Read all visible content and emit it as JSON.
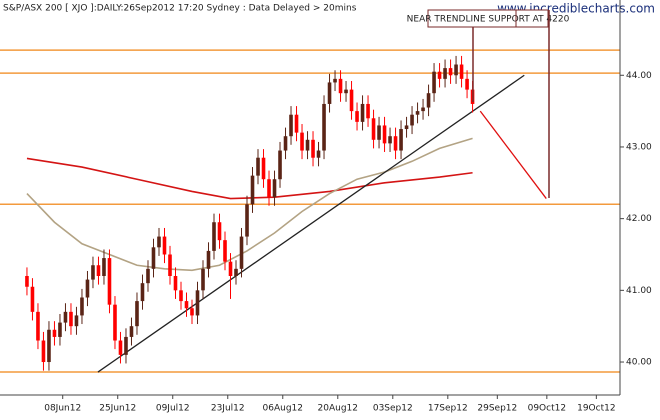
{
  "chart_data": {
    "type": "candlestick",
    "title": "S&P/ASX 200 [ XJO ]:DAILY:26Sep2012 17:20 Sydney : Data Delayed > 20mins",
    "watermark": "www.incrediblecharts.com",
    "annotation": "NEAR TRENDLINE SUPPORT AT 4220",
    "up_color": "#5a2416",
    "down_color": "#ff0000",
    "xlim": [
      -4.9,
      107.8
    ],
    "xticks": [
      {
        "value": 6.5,
        "label": "08Jun12"
      },
      {
        "value": 16.5,
        "label": "25Jun12"
      },
      {
        "value": 26.5,
        "label": "09Jul12"
      },
      {
        "value": 36.5,
        "label": "23Jul12"
      },
      {
        "value": 46.5,
        "label": "06Aug12"
      },
      {
        "value": 56.5,
        "label": "20Aug12"
      },
      {
        "value": 66.5,
        "label": "03Sep12"
      },
      {
        "value": 76.5,
        "label": "17Sep12"
      },
      {
        "value": 85.5,
        "label": "29Sep12"
      },
      {
        "value": 94.5,
        "label": "09Oct12"
      },
      {
        "value": 103.5,
        "label": "19Oct12"
      }
    ],
    "ylim": [
      39.54,
      45.05
    ],
    "yticks": [
      {
        "value": 40,
        "label": "40.00"
      },
      {
        "value": 41,
        "label": "41.00"
      },
      {
        "value": 42,
        "label": "42.00"
      },
      {
        "value": 43,
        "label": "43.00"
      },
      {
        "value": 44,
        "label": "44.00"
      }
    ],
    "x": [
      0,
      1,
      2,
      3,
      4,
      5,
      6,
      7,
      8,
      9,
      10,
      11,
      12,
      13,
      14,
      15,
      16,
      17,
      18,
      19,
      20,
      21,
      22,
      23,
      24,
      25,
      26,
      27,
      28,
      29,
      30,
      31,
      32,
      33,
      34,
      35,
      36,
      37,
      38,
      39,
      40,
      41,
      42,
      43,
      44,
      45,
      46,
      47,
      48,
      49,
      50,
      51,
      52,
      53,
      54,
      55,
      56,
      57,
      58,
      59,
      60,
      61,
      62,
      63,
      64,
      65,
      66,
      67,
      68,
      69,
      70,
      71,
      72,
      73,
      74,
      75,
      76,
      77,
      78,
      79,
      80,
      81
    ],
    "open": [
      41.2,
      41.05,
      40.7,
      40.3,
      40.0,
      40.45,
      40.35,
      40.55,
      40.7,
      40.5,
      40.65,
      40.9,
      41.15,
      41.35,
      41.2,
      41.45,
      40.8,
      40.3,
      40.1,
      40.35,
      40.5,
      40.85,
      41.1,
      41.3,
      41.6,
      41.75,
      41.5,
      41.2,
      41.0,
      40.85,
      40.75,
      40.65,
      41.0,
      41.3,
      41.55,
      41.95,
      41.7,
      41.4,
      41.2,
      41.3,
      41.75,
      42.2,
      42.6,
      42.85,
      42.55,
      42.3,
      42.55,
      42.95,
      43.15,
      43.45,
      43.2,
      42.95,
      43.1,
      42.85,
      42.95,
      43.6,
      43.9,
      43.95,
      43.75,
      43.8,
      43.5,
      43.35,
      43.6,
      43.4,
      43.1,
      43.3,
      43.05,
      43.15,
      42.95,
      43.25,
      43.3,
      43.45,
      43.5,
      43.55,
      43.75,
      44.05,
      43.95,
      44.1,
      44.0,
      44.15,
      43.95,
      43.8
    ],
    "high": [
      41.32,
      41.17,
      40.82,
      40.42,
      40.57,
      40.57,
      40.67,
      40.82,
      40.82,
      40.77,
      41.02,
      41.27,
      41.47,
      41.47,
      41.57,
      41.57,
      40.92,
      40.42,
      40.47,
      40.62,
      40.97,
      41.22,
      41.42,
      41.72,
      41.87,
      41.87,
      41.62,
      41.32,
      41.12,
      40.97,
      40.87,
      41.12,
      41.42,
      41.67,
      42.07,
      42.07,
      41.82,
      41.52,
      41.42,
      41.87,
      42.32,
      42.72,
      42.97,
      42.97,
      42.67,
      42.67,
      43.07,
      43.27,
      43.57,
      43.57,
      43.32,
      43.22,
      43.22,
      43.07,
      43.72,
      44.02,
      44.07,
      44.07,
      43.92,
      43.92,
      43.62,
      43.72,
      43.72,
      43.52,
      43.42,
      43.42,
      43.27,
      43.27,
      43.37,
      43.42,
      43.57,
      43.62,
      43.67,
      43.87,
      44.17,
      44.17,
      44.22,
      44.22,
      44.27,
      44.27,
      44.07,
      43.92
    ],
    "low": [
      40.93,
      40.58,
      40.18,
      39.88,
      39.88,
      40.23,
      40.23,
      40.43,
      40.38,
      40.38,
      40.53,
      40.78,
      41.03,
      41.08,
      41.08,
      40.68,
      40.18,
      39.98,
      39.98,
      40.23,
      40.38,
      40.73,
      40.98,
      41.18,
      41.48,
      41.38,
      41.08,
      40.88,
      40.73,
      40.63,
      40.53,
      40.53,
      40.88,
      41.18,
      41.43,
      41.58,
      41.28,
      40.88,
      41.08,
      41.18,
      41.63,
      42.08,
      42.48,
      42.43,
      42.18,
      42.18,
      42.43,
      42.83,
      43.03,
      43.08,
      42.83,
      42.83,
      42.73,
      42.73,
      42.83,
      43.48,
      43.78,
      43.63,
      43.63,
      43.38,
      43.23,
      43.23,
      43.28,
      42.98,
      42.98,
      42.93,
      42.93,
      42.83,
      42.83,
      43.13,
      43.18,
      43.33,
      43.38,
      43.43,
      43.63,
      43.83,
      43.83,
      43.88,
      43.88,
      43.83,
      43.68,
      43.48
    ],
    "close": [
      41.05,
      40.7,
      40.3,
      40.0,
      40.45,
      40.35,
      40.55,
      40.7,
      40.5,
      40.65,
      40.9,
      41.15,
      41.35,
      41.2,
      41.45,
      40.8,
      40.3,
      40.1,
      40.35,
      40.5,
      40.85,
      41.1,
      41.3,
      41.6,
      41.75,
      41.5,
      41.2,
      41.0,
      40.85,
      40.75,
      40.65,
      41.0,
      41.3,
      41.55,
      41.95,
      41.7,
      41.4,
      41.2,
      41.3,
      41.75,
      42.2,
      42.6,
      42.85,
      42.55,
      42.3,
      42.55,
      42.95,
      43.15,
      43.45,
      43.2,
      42.95,
      43.1,
      42.85,
      42.95,
      43.6,
      43.9,
      43.95,
      43.75,
      43.8,
      43.5,
      43.35,
      43.6,
      43.4,
      43.1,
      43.3,
      43.05,
      43.15,
      42.95,
      43.25,
      43.3,
      43.45,
      43.5,
      43.55,
      43.75,
      44.05,
      43.95,
      44.1,
      44.0,
      44.15,
      43.95,
      43.8,
      43.6
    ],
    "hlines": [
      {
        "value": 44.35,
        "color": "#f39a3c"
      },
      {
        "value": 44.03,
        "color": "#f39a3c"
      },
      {
        "value": 42.2,
        "color": "#f39a3c"
      },
      {
        "value": 39.86,
        "color": "#f39a3c"
      }
    ],
    "lines": [
      {
        "color": "#d41414",
        "width": 1.6,
        "x": [
          0,
          10,
          20,
          30,
          37,
          45,
          55,
          65,
          75,
          81
        ],
        "values": [
          42.84,
          42.72,
          42.55,
          42.38,
          42.28,
          42.3,
          42.38,
          42.5,
          42.58,
          42.64
        ]
      },
      {
        "color": "#b3a384",
        "width": 1.6,
        "x": [
          0,
          5,
          10,
          15,
          20,
          25,
          30,
          35,
          40,
          45,
          50,
          55,
          60,
          65,
          70,
          75,
          81
        ],
        "values": [
          42.35,
          41.95,
          41.65,
          41.5,
          41.35,
          41.3,
          41.28,
          41.35,
          41.55,
          41.8,
          42.1,
          42.35,
          42.55,
          42.65,
          42.8,
          42.98,
          43.12
        ]
      },
      {
        "color": "#222222",
        "width": 1.3,
        "x": [
          12.9,
          90.4
        ],
        "values": [
          39.86,
          44.0
        ]
      },
      {
        "color": "#e01010",
        "width": 1.3,
        "x": [
          82.4,
          94.4
        ],
        "values": [
          43.5,
          42.28
        ]
      }
    ]
  }
}
